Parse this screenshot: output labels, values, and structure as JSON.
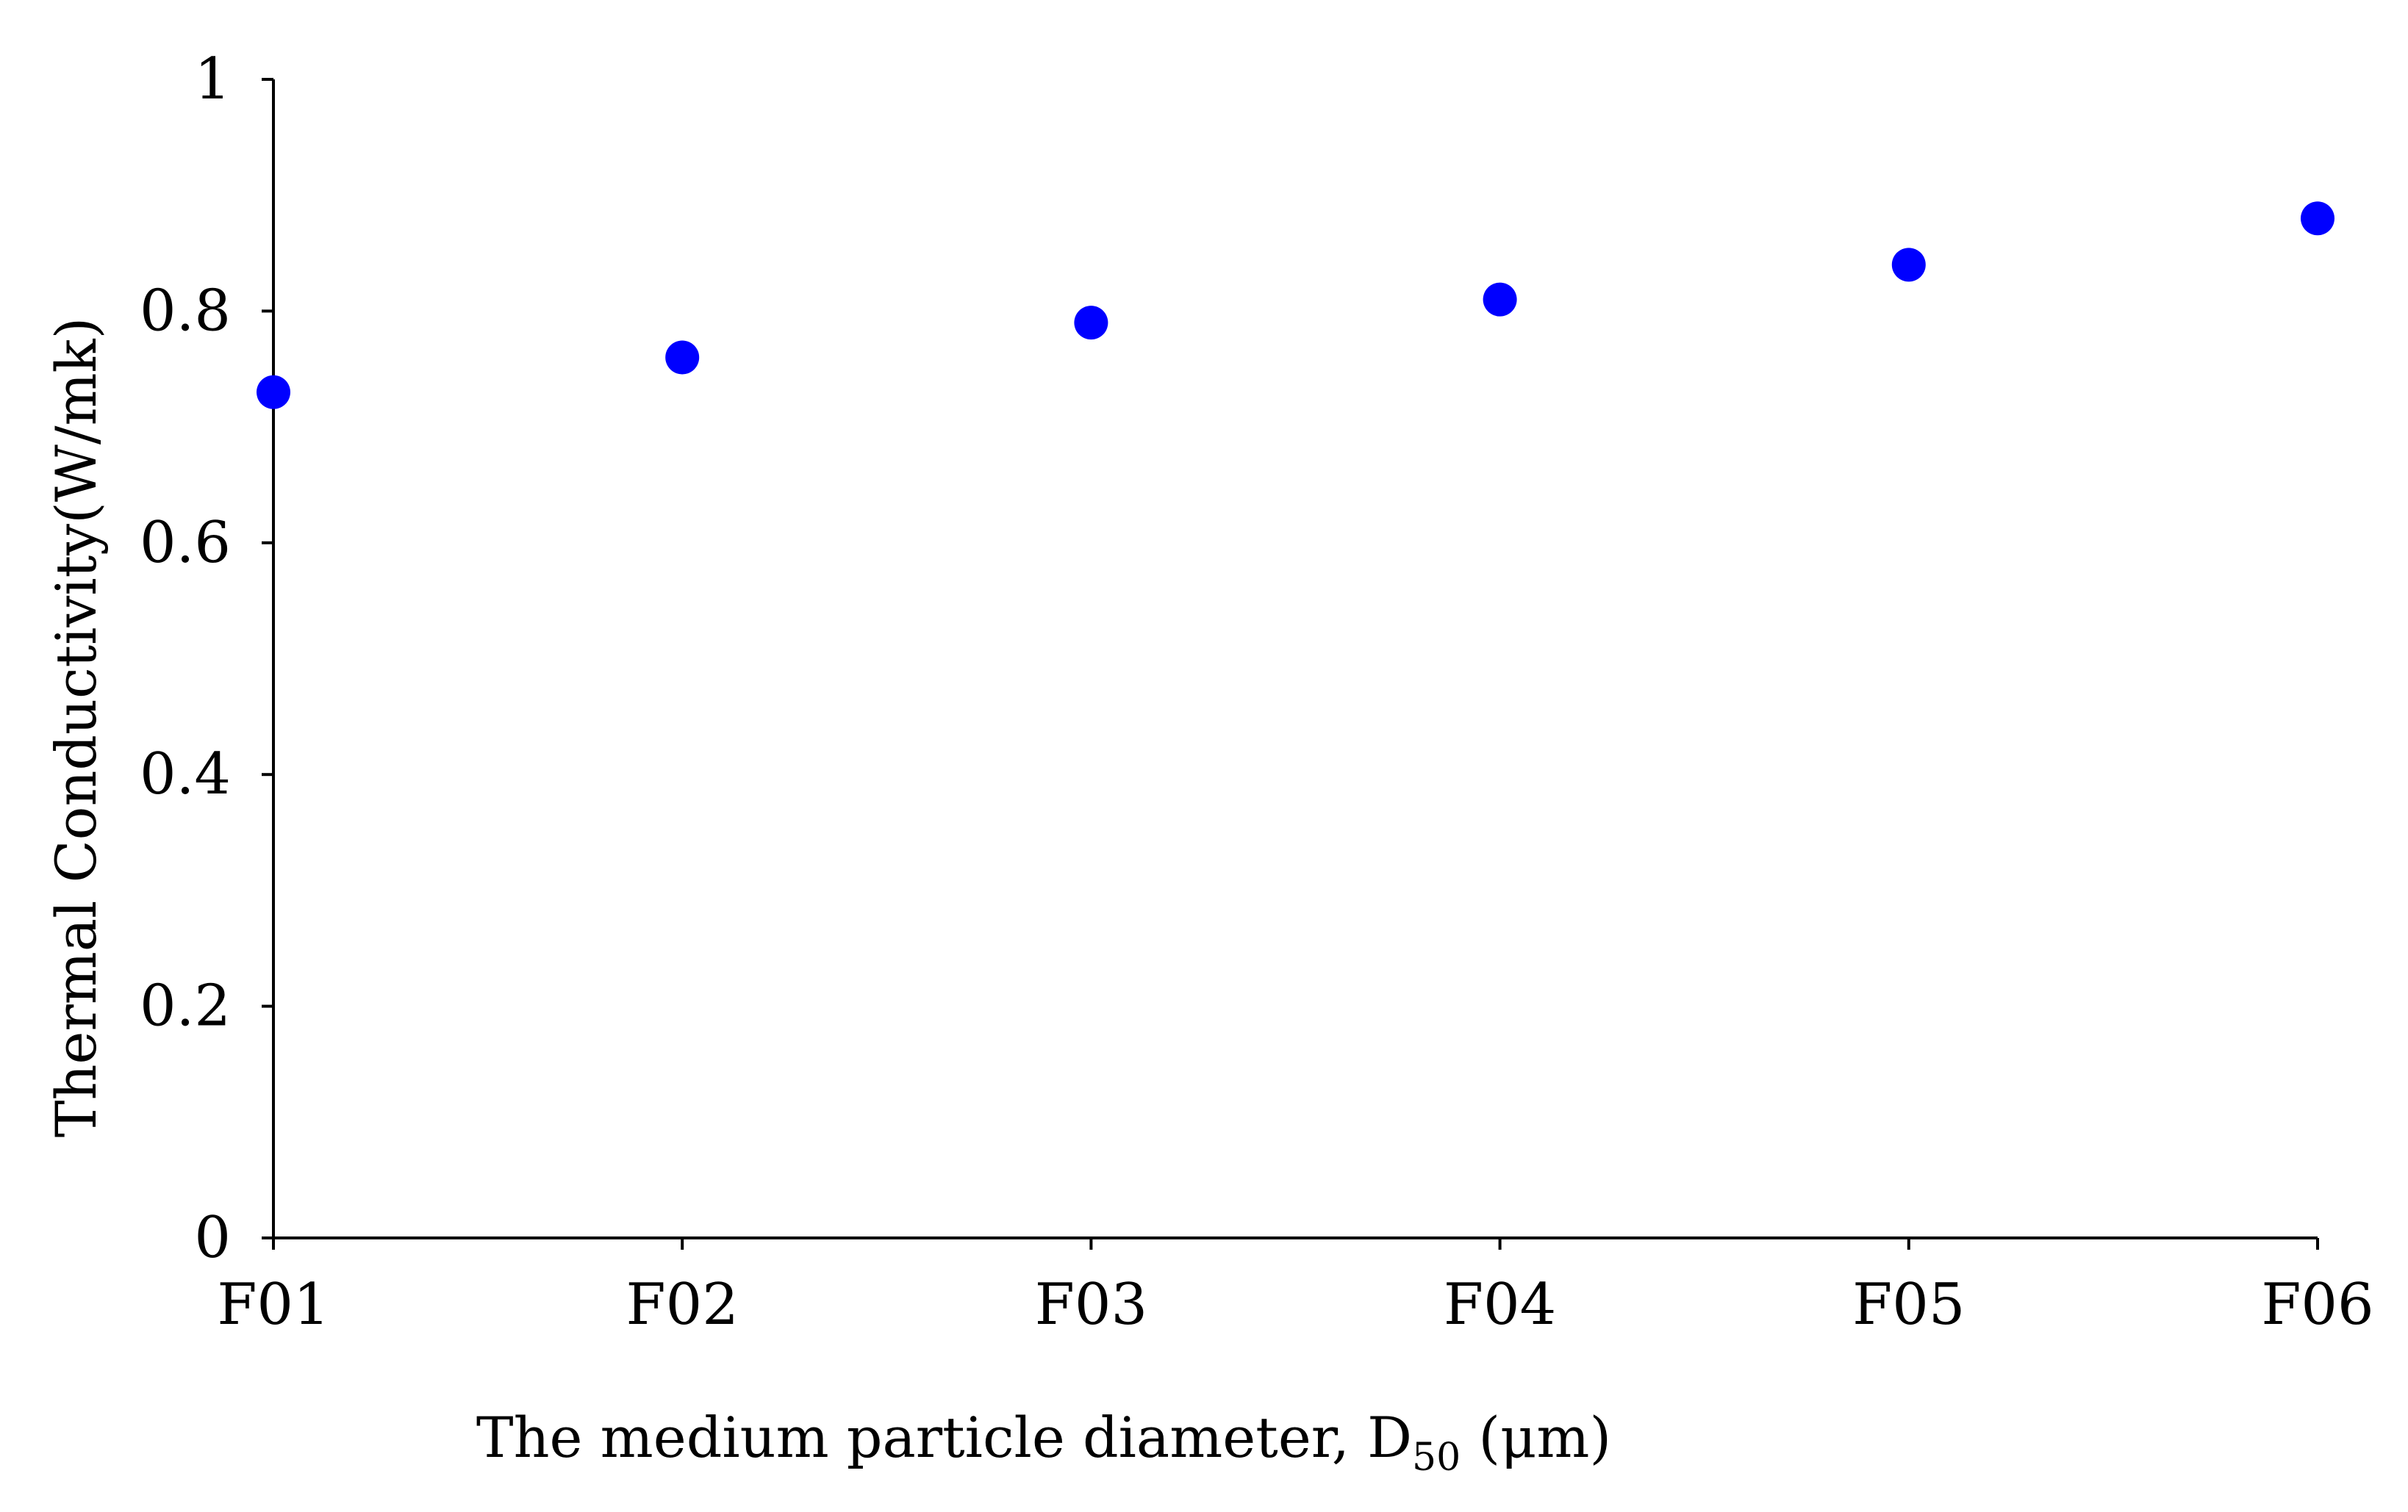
{
  "chart_data": {
    "type": "scatter",
    "categories": [
      "F01",
      "F02",
      "F03",
      "F04",
      "F05",
      "F06"
    ],
    "series": [
      {
        "values": [
          0.73,
          0.76,
          0.79,
          0.81,
          0.84,
          0.88
        ],
        "color": "#0000ff"
      }
    ],
    "ylim": [
      0,
      1
    ],
    "yticks": [
      {
        "value": 0,
        "label": "0"
      },
      {
        "value": 0.2,
        "label": "0.2"
      },
      {
        "value": 0.4,
        "label": "0.4"
      },
      {
        "value": 0.6,
        "label": "0.6"
      },
      {
        "value": 0.8,
        "label": "0.8"
      },
      {
        "value": 1,
        "label": "1"
      }
    ],
    "ylabel": "Thermal Conductivity(W/mk)",
    "xlabel": {
      "main": "The medium particle diameter, D",
      "subscript": "50",
      "unit": " (μm)"
    },
    "grid": false,
    "legend": "none"
  }
}
